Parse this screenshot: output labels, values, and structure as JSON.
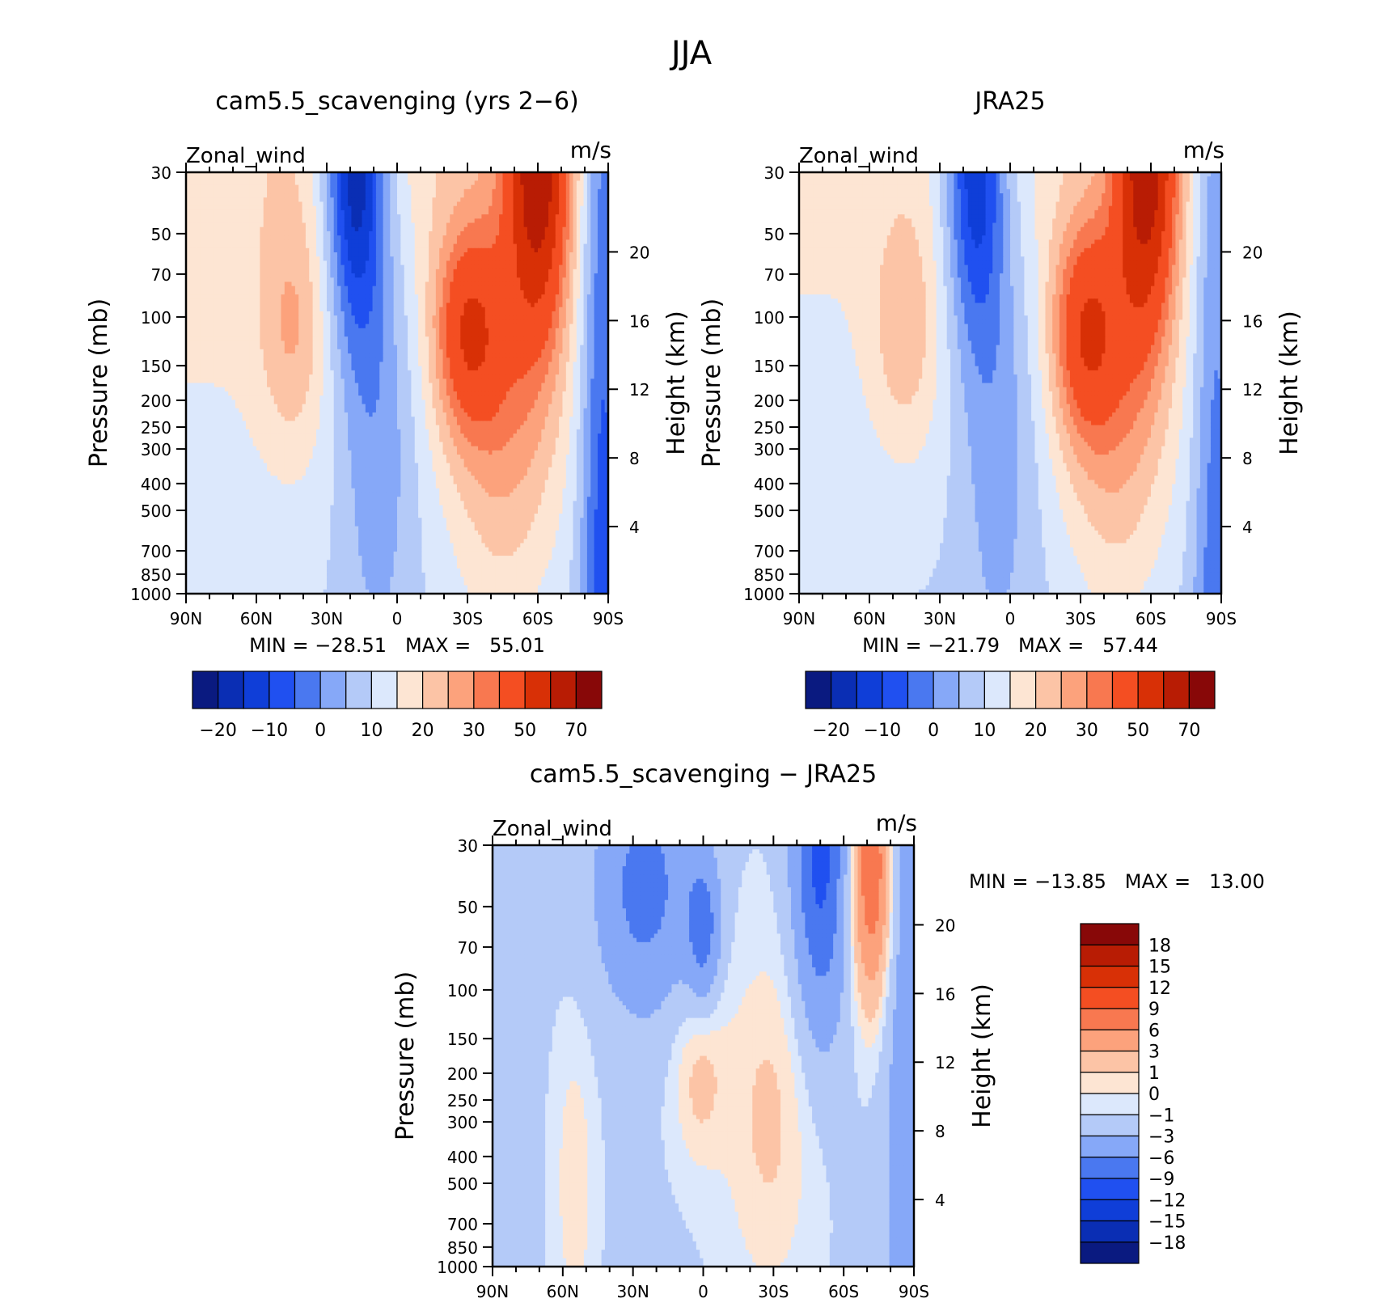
{
  "figure": {
    "title": "JJA"
  },
  "chart_data": [
    {
      "type": "heatmap",
      "title": "cam5.5_scavenging (yrs 2−6)",
      "variable": "Zonal_wind",
      "units": "m/s",
      "xlabel": "",
      "ylabel": "Pressure (mb)",
      "ylabel_right": "Height (km)",
      "x_ticks": [
        "90N",
        "60N",
        "30N",
        "0",
        "30S",
        "60S",
        "90S"
      ],
      "y_ticks": [
        "30",
        "50",
        "70",
        "100",
        "150",
        "200",
        "250",
        "300",
        "400",
        "500",
        "700",
        "850",
        "1000"
      ],
      "y_right_ticks": [
        "20",
        "16",
        "12",
        "8",
        "4"
      ],
      "y_scale": "log",
      "stats": "MIN = −28.51   MAX =   55.01",
      "min": -28.51,
      "max": 55.01,
      "colorbar_labels": [
        "−20",
        "−10",
        "0",
        "10",
        "20",
        "30",
        "50",
        "70"
      ],
      "colorbar_orientation": "horizontal"
    },
    {
      "type": "heatmap",
      "title": "JRA25",
      "variable": "Zonal_wind",
      "units": "m/s",
      "xlabel": "",
      "ylabel": "Pressure (mb)",
      "ylabel_right": "Height (km)",
      "x_ticks": [
        "90N",
        "60N",
        "30N",
        "0",
        "30S",
        "60S",
        "90S"
      ],
      "y_ticks": [
        "30",
        "50",
        "70",
        "100",
        "150",
        "200",
        "250",
        "300",
        "400",
        "500",
        "700",
        "850",
        "1000"
      ],
      "y_right_ticks": [
        "20",
        "16",
        "12",
        "8",
        "4"
      ],
      "y_scale": "log",
      "stats": "MIN = −21.79   MAX =   57.44",
      "min": -21.79,
      "max": 57.44,
      "colorbar_labels": [
        "−20",
        "−10",
        "0",
        "10",
        "20",
        "30",
        "50",
        "70"
      ],
      "colorbar_orientation": "horizontal"
    },
    {
      "type": "heatmap",
      "title": "cam5.5_scavenging − JRA25",
      "variable": "Zonal_wind",
      "units": "m/s",
      "xlabel": "",
      "ylabel": "Pressure (mb)",
      "ylabel_right": "Height (km)",
      "x_ticks": [
        "90N",
        "60N",
        "30N",
        "0",
        "30S",
        "60S",
        "90S"
      ],
      "y_ticks": [
        "30",
        "50",
        "70",
        "100",
        "150",
        "200",
        "250",
        "300",
        "400",
        "500",
        "700",
        "850",
        "1000"
      ],
      "y_right_ticks": [
        "20",
        "16",
        "12",
        "8",
        "4"
      ],
      "y_scale": "log",
      "stats": "MIN = −13.85   MAX =   13.00",
      "min": -13.85,
      "max": 13.0,
      "colorbar_labels": [
        "18",
        "15",
        "12",
        "9",
        "6",
        "3",
        "1",
        "0",
        "−1",
        "−3",
        "−6",
        "−9",
        "−12",
        "−15",
        "−18"
      ],
      "colorbar_orientation": "vertical"
    }
  ],
  "palettes": {
    "abs": [
      "#0a1a80",
      "#0a2eb4",
      "#0f3ed8",
      "#2050f0",
      "#4a78f0",
      "#86a8f8",
      "#b4caf8",
      "#dce8fc",
      "#fde5d3",
      "#fcc4a6",
      "#fca27c",
      "#f87850",
      "#f44e22",
      "#d83006",
      "#b81c04",
      "#880808"
    ],
    "diff": [
      "#880808",
      "#b81c04",
      "#d83006",
      "#f44e22",
      "#f87850",
      "#fca27c",
      "#fcc4a6",
      "#fde5d3",
      "#dce8fc",
      "#b4caf8",
      "#86a8f8",
      "#4a78f0",
      "#2050f0",
      "#0f3ed8",
      "#0a2eb4",
      "#0a1a80"
    ]
  }
}
